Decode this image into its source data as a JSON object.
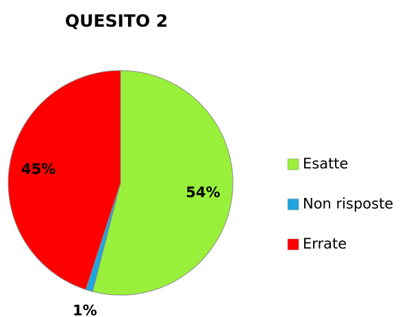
{
  "chart_data": {
    "type": "pie",
    "title": "QUESITO 2",
    "categories": [
      "Esatte",
      "Non risposte",
      "Errate"
    ],
    "values": [
      54,
      1,
      45
    ],
    "value_labels": [
      "54%",
      "1%",
      "45%"
    ],
    "colors": [
      "#99f03a",
      "#1fa5e0",
      "#ff0000"
    ],
    "legend": "right"
  }
}
